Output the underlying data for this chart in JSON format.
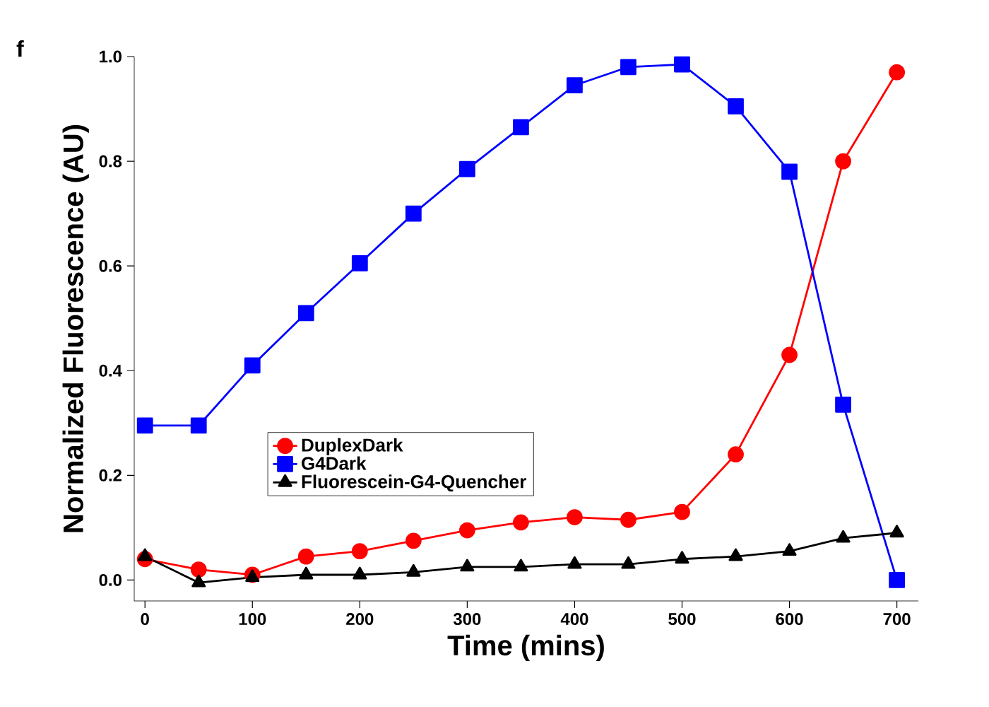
{
  "chart_data": {
    "type": "line",
    "xlabel": "Time (mins)",
    "ylabel": "Normalized Fluorescence (AU)",
    "annotations": [
      "f"
    ],
    "x": [
      0,
      50,
      100,
      150,
      200,
      250,
      300,
      350,
      400,
      450,
      500,
      550,
      600,
      650,
      700
    ],
    "series": [
      {
        "name": "DuplexDark",
        "color": "#ff0000",
        "marker": "circle",
        "values": [
          0.04,
          0.02,
          0.01,
          0.045,
          0.055,
          0.075,
          0.095,
          0.11,
          0.12,
          0.115,
          0.13,
          0.24,
          0.43,
          0.8,
          0.97
        ]
      },
      {
        "name": "G4Dark",
        "color": "#0000ff",
        "marker": "square",
        "values": [
          0.295,
          0.295,
          0.41,
          0.51,
          0.605,
          0.7,
          0.785,
          0.865,
          0.945,
          0.98,
          0.985,
          0.905,
          0.78,
          0.335,
          0.0
        ]
      },
      {
        "name": "Fluorescein-G4-Quencher",
        "color": "#000000",
        "marker": "triangle",
        "values": [
          0.045,
          -0.005,
          0.005,
          0.01,
          0.01,
          0.015,
          0.025,
          0.025,
          0.03,
          0.03,
          0.04,
          0.045,
          0.055,
          0.08,
          0.09
        ]
      }
    ],
    "xlim": [
      -10,
      720
    ],
    "ylim": [
      -0.04,
      1.0
    ],
    "xticks": [
      0,
      100,
      200,
      300,
      400,
      500,
      600,
      700
    ],
    "yticks": [
      {
        "value": 0,
        "label": "0.0"
      },
      {
        "value": 0.2,
        "label": "0.2"
      },
      {
        "value": 0.4,
        "label": "0.4"
      },
      {
        "value": 0.6,
        "label": "0.6"
      },
      {
        "value": 0.8,
        "label": "0.8"
      },
      {
        "value": 1.0,
        "label": "1.0"
      }
    ],
    "grid": false,
    "legend": "left",
    "line_style": "solid"
  }
}
